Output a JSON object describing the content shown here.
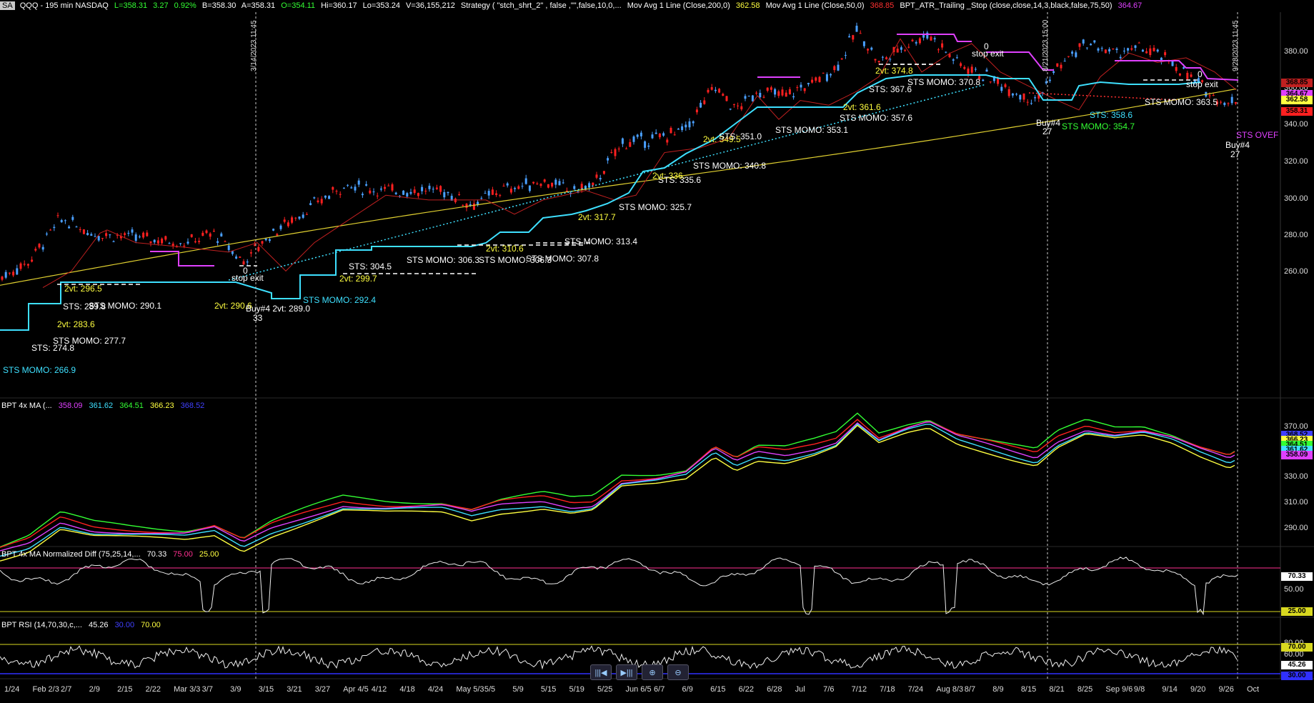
{
  "header": {
    "tag": "SA",
    "symbol": "QQQ - 195 min  NASDAQ",
    "last": "L=358.31",
    "chg": "3.27",
    "pct": "0.92%",
    "bid": "B=358.30",
    "ask": "A=358.31",
    "open": "O=354.11",
    "high": "Hi=360.17",
    "low": "Lo=353.24",
    "vol": "V=36,155,212",
    "strategy": "Strategy ( \"stch_shrt_2\" , false ,\"\",false,10,0,...",
    "ma200": "Mov Avg 1 Line (Close,200,0)",
    "ma200_val": "362.58",
    "ma50": "Mov Avg 1 Line (Close,50,0)",
    "ma50_val": "368.85",
    "atr": "BPT_ATR_Trailing _Stop (close,close,14,3,black,false,75,50)",
    "atr_val": "364.67"
  },
  "pane2": {
    "label": "BPT 4x MA (...",
    "v1": "358.09",
    "v2": "361.62",
    "v3": "364.51",
    "v4": "366.23",
    "v5": "368.52"
  },
  "pane3": {
    "label": "BPT 4x MA Normalized Diff (75,25,14,...",
    "v1": "70.33",
    "v2": "75.00",
    "v3": "25.00"
  },
  "pane4": {
    "label": "BPT RSI (14,70,30,c,...",
    "v1": "45.26",
    "v2": "30.00",
    "v3": "70.00"
  },
  "price_axis": [
    "380.00",
    "360.00",
    "340.00",
    "320.00",
    "300.00",
    "280.00",
    "260.00"
  ],
  "price_tags": [
    "368.85",
    "364.67",
    "362.58",
    "358.31"
  ],
  "ma_axis": [
    "370.00",
    "350.00",
    "330.00",
    "310.00",
    "290.00"
  ],
  "ma_tags": [
    "368.52",
    "366.23",
    "364.51",
    "361.62",
    "358.09"
  ],
  "diff_axis": [
    "50.00"
  ],
  "diff_tags": [
    "70.33",
    "25.00"
  ],
  "rsi_axis": [
    "80.00",
    "60.00"
  ],
  "rsi_tags": [
    "70.00",
    "45.26",
    "30.00"
  ],
  "x_axis": [
    "1/24",
    "Feb 2/3",
    "2/7",
    "2/9",
    "2/15",
    "2/22",
    "Mar 3/3",
    "3/7",
    "3/9",
    "3/15",
    "3/21",
    "3/27",
    "Apr 4/5",
    "4/12",
    "4/18",
    "4/24",
    "May 5/3",
    "5/5",
    "5/9",
    "5/15",
    "5/19",
    "5/25",
    "Jun 6/5",
    "6/7",
    "6/9",
    "6/15",
    "6/22",
    "6/28",
    "Jul",
    "7/6",
    "7/12",
    "7/18",
    "7/24",
    "Aug 8/3",
    "8/7",
    "8/9",
    "8/15",
    "8/21",
    "8/25",
    "Sep 9/6",
    "9/8",
    "9/14",
    "9/20",
    "9/26",
    "Oct"
  ],
  "vlines": [
    "3/14/2023 11:45",
    "8/21/2023 15:00",
    "9/28/2023 11:45"
  ],
  "annotations": [
    {
      "t": "STS MOMO: 266.9",
      "c": "#3ee0ff"
    },
    {
      "t": "STS: 274.8",
      "c": "#fff"
    },
    {
      "t": "STS MOMO: 277.7",
      "c": "#fff"
    },
    {
      "t": "2vt: 283.6",
      "c": "#ffff40"
    },
    {
      "t": "STS: 289.8",
      "c": "#fff"
    },
    {
      "t": "STS MOMO: 290.1",
      "c": "#fff"
    },
    {
      "t": "2vt: 296.5",
      "c": "#ffff40"
    },
    {
      "t": "2vt: 290.6",
      "c": "#ffff40"
    },
    {
      "t": "0",
      "c": "#fff"
    },
    {
      "t": "stop exit",
      "c": "#fff"
    },
    {
      "t": "Buy#4 2vt: 289.0",
      "c": "#fff"
    },
    {
      "t": "33",
      "c": "#fff"
    },
    {
      "t": "STS MOMO: 292.4",
      "c": "#3ee0ff"
    },
    {
      "t": "2vt: 299.7",
      "c": "#ffff40"
    },
    {
      "t": "STS: 304.5",
      "c": "#fff"
    },
    {
      "t": "STS MOMO: 306.3",
      "c": "#fff"
    },
    {
      "t": "STS MOMO: 306.3",
      "c": "#fff"
    },
    {
      "t": "STS MOMO: 307.8",
      "c": "#fff"
    },
    {
      "t": "2vt: 310.6",
      "c": "#ffff40"
    },
    {
      "t": "STS MOMO: 313.4",
      "c": "#fff"
    },
    {
      "t": "2vt: 317.7",
      "c": "#ffff40"
    },
    {
      "t": "STS MOMO: 325.7",
      "c": "#fff"
    },
    {
      "t": "STS: 335.6",
      "c": "#fff"
    },
    {
      "t": "2vt: 336.",
      "c": "#ffff40"
    },
    {
      "t": "STS MOMO: 340.8",
      "c": "#fff"
    },
    {
      "t": "2vt: 349.5",
      "c": "#ffff40"
    },
    {
      "t": "STS: 351.0",
      "c": "#fff"
    },
    {
      "t": "STS MOMO: 353.1",
      "c": "#fff"
    },
    {
      "t": "STS MOMO: 357.6",
      "c": "#fff"
    },
    {
      "t": "2vt: 361.6",
      "c": "#ffff40"
    },
    {
      "t": "STS: 367.6",
      "c": "#fff"
    },
    {
      "t": "2vt: 374.8",
      "c": "#ffff40"
    },
    {
      "t": "STS MOMO: 370.8",
      "c": "#fff"
    },
    {
      "t": "0",
      "c": "#fff"
    },
    {
      "t": "stop exit",
      "c": "#fff"
    },
    {
      "t": "Buy#4",
      "c": "#fff"
    },
    {
      "t": "27",
      "c": "#fff"
    },
    {
      "t": "STS MOMO: 354.7",
      "c": "#33ff33"
    },
    {
      "t": "STS: 358.6",
      "c": "#3ee0ff"
    },
    {
      "t": "STS MOMO: 363.5",
      "c": "#fff"
    },
    {
      "t": "0",
      "c": "#fff"
    },
    {
      "t": "stop exit",
      "c": "#fff"
    },
    {
      "t": "Buy#4",
      "c": "#fff"
    },
    {
      "t": "27",
      "c": "#fff"
    },
    {
      "t": "STS OVEF",
      "c": "#e040ff"
    }
  ],
  "zoom": [
    "scroll-left-icon",
    "scroll-right-icon",
    "zoom-in-icon",
    "zoom-out-icon"
  ]
}
